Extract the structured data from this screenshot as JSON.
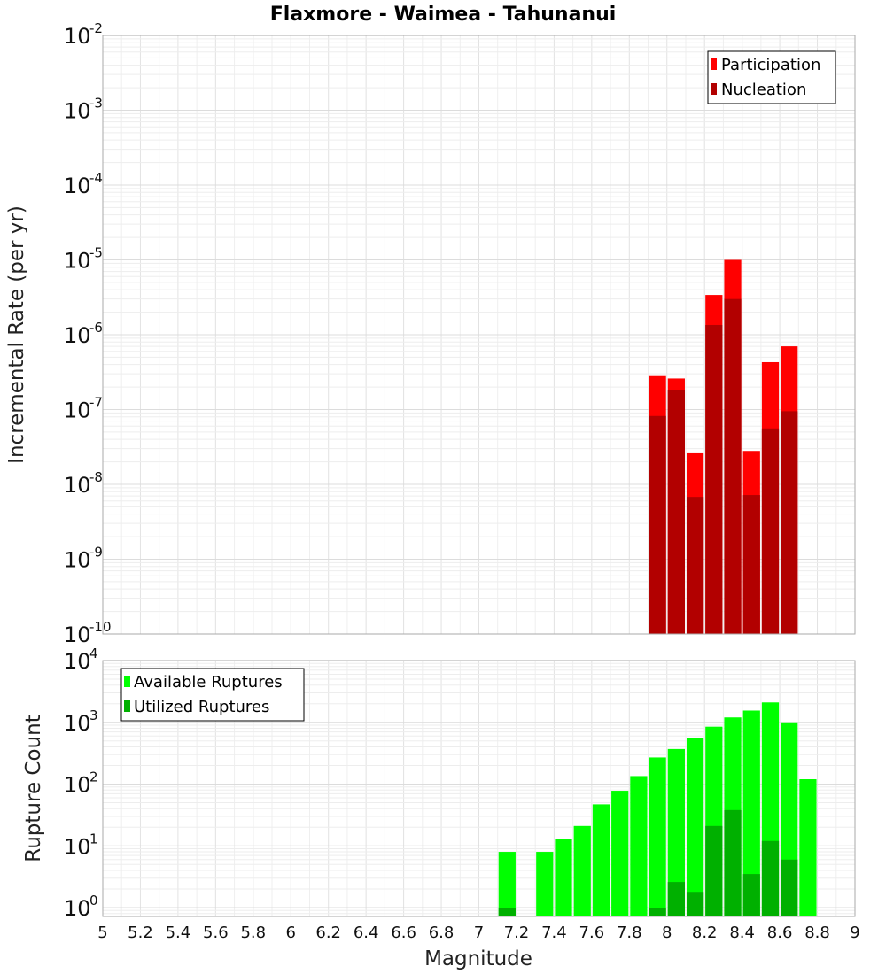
{
  "chart_data": [
    {
      "type": "bar",
      "title": "Flaxmore - Waimea - Tahunanui",
      "xlabel": "Magnitude",
      "ylabel": "Incremental Rate (per yr)",
      "yscale": "log",
      "ylim": [
        1e-10,
        0.01
      ],
      "xlim": [
        5,
        9
      ],
      "grid": true,
      "legend_position": "top-right",
      "y_ticks": [
        {
          "base": "10",
          "exp": "-10",
          "value": 1e-10
        },
        {
          "base": "10",
          "exp": "-9",
          "value": 1e-09
        },
        {
          "base": "10",
          "exp": "-8",
          "value": 1e-08
        },
        {
          "base": "10",
          "exp": "-7",
          "value": 1e-07
        },
        {
          "base": "10",
          "exp": "-6",
          "value": 1e-06
        },
        {
          "base": "10",
          "exp": "-5",
          "value": 1e-05
        },
        {
          "base": "10",
          "exp": "-4",
          "value": 0.0001
        },
        {
          "base": "10",
          "exp": "-3",
          "value": 0.001
        },
        {
          "base": "10",
          "exp": "-2",
          "value": 0.01
        }
      ],
      "x": [
        7.95,
        8.05,
        8.15,
        8.25,
        8.35,
        8.45,
        8.55,
        8.65
      ],
      "series": [
        {
          "name": "Participation",
          "color": "#ff0000",
          "values": [
            2.8e-07,
            2.6e-07,
            2.6e-08,
            3.4e-06,
            1e-05,
            2.8e-08,
            4.3e-07,
            7e-07
          ]
        },
        {
          "name": "Nucleation",
          "color": "#b20000",
          "values": [
            8.2e-08,
            1.8e-07,
            6.8e-09,
            1.35e-06,
            3e-06,
            7.2e-09,
            5.6e-08,
            9.5e-08
          ]
        }
      ]
    },
    {
      "type": "bar",
      "xlabel": "Magnitude",
      "ylabel": "Rupture Count",
      "yscale": "log",
      "ylim": [
        0.72,
        10000
      ],
      "xlim": [
        5,
        9
      ],
      "grid": true,
      "legend_position": "top-left",
      "y_ticks": [
        {
          "base": "10",
          "exp": "0",
          "value": 1
        },
        {
          "base": "10",
          "exp": "1",
          "value": 10
        },
        {
          "base": "10",
          "exp": "2",
          "value": 100
        },
        {
          "base": "10",
          "exp": "3",
          "value": 1000
        },
        {
          "base": "10",
          "exp": "4",
          "value": 10000
        }
      ],
      "x_ticks": [
        "5",
        "5.2",
        "5.4",
        "5.6",
        "5.8",
        "6",
        "6.2",
        "6.4",
        "6.6",
        "6.8",
        "7",
        "7.2",
        "7.4",
        "7.6",
        "7.8",
        "8",
        "8.2",
        "8.4",
        "8.6",
        "8.8",
        "9"
      ],
      "series": [
        {
          "name": "Available Ruptures",
          "color": "#00ff00",
          "x": [
            7.15,
            7.35,
            7.45,
            7.55,
            7.65,
            7.75,
            7.85,
            7.95,
            8.05,
            8.15,
            8.25,
            8.35,
            8.45,
            8.55,
            8.65,
            8.75
          ],
          "values": [
            8,
            8,
            13,
            21,
            47,
            78,
            135,
            270,
            370,
            560,
            850,
            1200,
            1550,
            2100,
            1000,
            120
          ]
        },
        {
          "name": "Utilized Ruptures",
          "color": "#00b000",
          "x": [
            7.15,
            7.95,
            8.05,
            8.15,
            8.25,
            8.35,
            8.45,
            8.55,
            8.65
          ],
          "values": [
            1,
            1,
            2.6,
            1.8,
            21,
            38,
            3.5,
            12,
            6
          ]
        }
      ]
    }
  ]
}
